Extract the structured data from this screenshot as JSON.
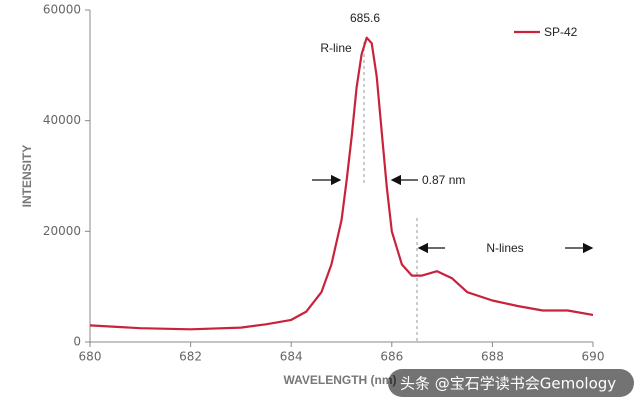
{
  "chart_data": {
    "type": "line",
    "x_label": "WAVELENGTH (nm)",
    "y_label": "INTENSITY",
    "x": [
      680,
      681,
      682,
      683,
      683.5,
      684,
      684.3,
      684.6,
      684.8,
      685.0,
      685.1,
      685.2,
      685.3,
      685.4,
      685.5,
      685.6,
      685.7,
      685.8,
      685.9,
      686.0,
      686.2,
      686.4,
      686.6,
      686.9,
      687.2,
      687.5,
      688,
      688.5,
      689,
      689.5,
      690
    ],
    "series": [
      {
        "name": "SP-42",
        "color": "#c8233a",
        "values": [
          3000,
          2500,
          2300,
          2600,
          3200,
          4000,
          5500,
          9000,
          14000,
          22000,
          29000,
          37000,
          46000,
          52000,
          55000,
          54000,
          48000,
          38000,
          28000,
          20000,
          14000,
          12000,
          12000,
          12800,
          11500,
          9000,
          7500,
          6500,
          5700,
          5700,
          4900
        ]
      }
    ],
    "xlim": [
      680,
      690
    ],
    "xticks": [
      680,
      682,
      684,
      686,
      688,
      690
    ],
    "ylim": [
      0,
      60000
    ],
    "yticks": [
      0,
      20000,
      40000,
      60000
    ],
    "annotations": {
      "peak": "685.6",
      "r_line": "R-line",
      "fwhm": "0.87 nm",
      "n_lines": "N-lines"
    },
    "watermark": "头条 @宝石学读书会Gemology",
    "legend": "upper right"
  }
}
